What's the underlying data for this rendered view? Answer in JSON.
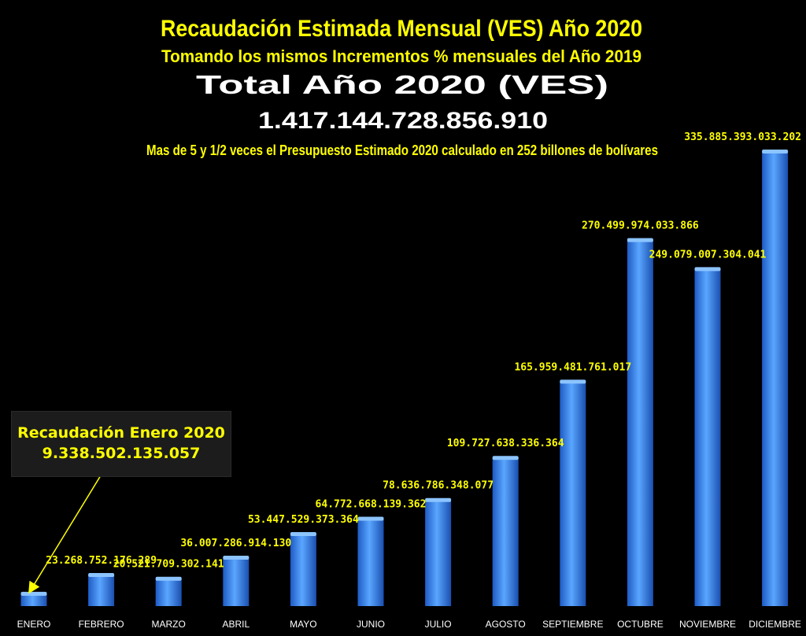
{
  "header": {
    "title": "Recaudación Estimada Mensual (VES) Año 2020",
    "subtitle": "Tomando los mismos Incrementos % mensuales del Año 2019",
    "total_label": "Total Año 2020 (VES)",
    "total_value": "1.417.144.728.856.910",
    "note": "Mas de 5 y 1/2 veces el Presupuesto Estimado 2020 calculado en 252 billones de bolívares"
  },
  "callout": {
    "label": "Recaudación Enero 2020",
    "value": "9.338.502.135.057"
  },
  "colors": {
    "background": "#000000",
    "bar": "#3d8ef0",
    "label": "#ffff00",
    "title": "#ffff00",
    "total": "#ffffff"
  },
  "chart_data": {
    "type": "bar",
    "categories": [
      "ENERO",
      "FEBRERO",
      "MARZO",
      "ABRIL",
      "MAYO",
      "JUNIO",
      "JULIO",
      "AGOSTO",
      "SEPTIEMBRE",
      "OCTUBRE",
      "NOVIEMBRE",
      "DICIEMBRE"
    ],
    "values": [
      9338502135057,
      23268752176289,
      20521709302141,
      36007286914130,
      53447529373364,
      64772668139362,
      78636786348077,
      109727638336364,
      165959481761017,
      270499974033866,
      249079007304041,
      335885393033202
    ],
    "data_labels": [
      "",
      "23.268.752.176.289",
      "20.521.709.302.141",
      "36.007.286.914.130",
      "53.447.529.373.364",
      "64.772.668.139.362",
      "78.636.786.348.077",
      "109.727.638.336.364",
      "165.959.481.761.017",
      "270.499.974.033.866",
      "249.079.007.304.041",
      "335.885.393.033.202"
    ],
    "ylim": [
      0,
      335885393033202
    ],
    "grid": false,
    "legend": "none"
  }
}
